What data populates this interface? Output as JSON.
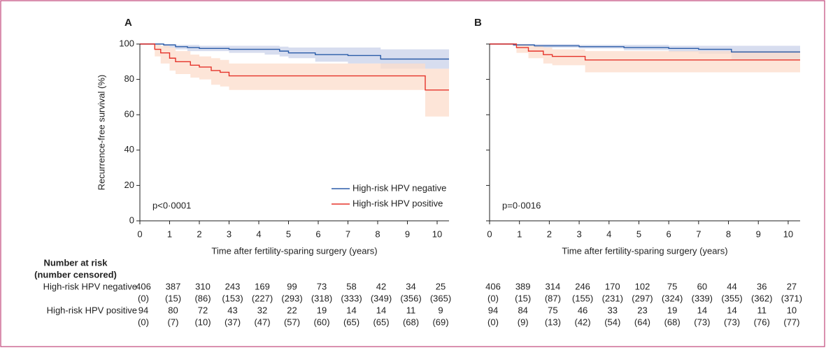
{
  "chart_data": [
    {
      "type": "line",
      "step": true,
      "panel_label": "A",
      "annotation": "p<0·0001",
      "ylabel": "Recurrence-free survival (%)",
      "xlabel": "Time after fertility-sparing surgery (years)",
      "xlim": [
        0,
        10.4
      ],
      "xticks": [
        0,
        1,
        2,
        3,
        4,
        5,
        6,
        7,
        8,
        9,
        10
      ],
      "ylim": [
        0,
        100
      ],
      "yticks": [
        0,
        20,
        40,
        60,
        80,
        100
      ],
      "show_ytick_labels": true,
      "legend": "lower right",
      "series": [
        {
          "name": "High-risk HPV negative",
          "color": "#2a5ca8",
          "band_color": "#c9d2ea",
          "x": [
            0,
            0.8,
            1.2,
            1.6,
            2,
            3,
            4.2,
            4.7,
            5,
            5.9,
            7,
            8.1,
            10.4
          ],
          "values": [
            100,
            99.5,
            98.5,
            98,
            97.5,
            97,
            97,
            96,
            95,
            94,
            93.5,
            91.5,
            91.5
          ],
          "lower": [
            100,
            98,
            97,
            96,
            96,
            95,
            94,
            93,
            92,
            90,
            89,
            86,
            86
          ],
          "upper": [
            100,
            100,
            99.5,
            99.5,
            99,
            99,
            99,
            98.5,
            98,
            98,
            98,
            97,
            97
          ]
        },
        {
          "name": "High-risk HPV positive",
          "color": "#e5332a",
          "band_color": "#fcdccb",
          "x": [
            0,
            0.5,
            0.7,
            1,
            1.2,
            1.7,
            2,
            2.4,
            2.7,
            3,
            9.6,
            10.4
          ],
          "values": [
            100,
            97,
            95,
            92,
            90,
            88,
            87,
            85,
            84,
            82,
            74,
            74
          ],
          "lower": [
            100,
            93,
            89,
            85,
            83,
            81,
            80,
            77,
            76,
            74,
            59,
            59
          ],
          "upper": [
            100,
            100,
            99,
            98,
            96,
            94,
            93,
            92,
            91,
            89,
            86,
            86
          ]
        }
      ]
    },
    {
      "type": "line",
      "step": true,
      "panel_label": "B",
      "annotation": "p=0·0016",
      "xlabel": "Time after fertility-sparing surgery (years)",
      "xlim": [
        0,
        10.4
      ],
      "xticks": [
        0,
        1,
        2,
        3,
        4,
        5,
        6,
        7,
        8,
        9,
        10
      ],
      "ylim": [
        0,
        100
      ],
      "yticks": [
        0,
        20,
        40,
        60,
        80,
        100
      ],
      "show_ytick_labels": false,
      "legend": "none",
      "series": [
        {
          "name": "High-risk HPV negative",
          "color": "#2a5ca8",
          "band_color": "#c9d2ea",
          "x": [
            0,
            0.8,
            1.5,
            3,
            4.5,
            6,
            7,
            8.1,
            10.4
          ],
          "values": [
            100,
            99.5,
            99,
            98.5,
            98,
            97.5,
            97,
            95.5,
            95.5
          ],
          "lower": [
            100,
            99,
            98,
            97.5,
            96.5,
            95.5,
            94.5,
            91,
            91
          ],
          "upper": [
            100,
            100,
            100,
            99.5,
            99.5,
            99,
            99,
            99,
            99
          ]
        },
        {
          "name": "High-risk HPV positive",
          "color": "#e5332a",
          "band_color": "#fcdccb",
          "x": [
            0,
            0.9,
            1.3,
            1.8,
            2.1,
            3.2,
            10.4
          ],
          "values": [
            100,
            98,
            96,
            94,
            93,
            91,
            91
          ],
          "lower": [
            100,
            95,
            92,
            89,
            88,
            84,
            84
          ],
          "upper": [
            100,
            100,
            99,
            98,
            97,
            96,
            96
          ]
        }
      ]
    }
  ],
  "risk_table": {
    "header": [
      "Number at risk",
      "(number censored)"
    ],
    "rows": [
      {
        "label": "High-risk HPV negative",
        "panels": [
          {
            "at_risk": [
              406,
              387,
              310,
              243,
              169,
              99,
              73,
              58,
              42,
              34,
              25
            ],
            "censored": [
              "(0)",
              "(15)",
              "(86)",
              "(153)",
              "(227)",
              "(293)",
              "(318)",
              "(333)",
              "(349)",
              "(356)",
              "(365)"
            ]
          },
          {
            "at_risk": [
              406,
              389,
              314,
              246,
              170,
              102,
              75,
              60,
              44,
              36,
              27
            ],
            "censored": [
              "(0)",
              "(15)",
              "(87)",
              "(155)",
              "(231)",
              "(297)",
              "(324)",
              "(339)",
              "(355)",
              "(362)",
              "(371)"
            ]
          }
        ]
      },
      {
        "label": "High-risk HPV positive",
        "panels": [
          {
            "at_risk": [
              94,
              80,
              72,
              43,
              32,
              22,
              19,
              14,
              14,
              11,
              9
            ],
            "censored": [
              "(0)",
              "(7)",
              "(10)",
              "(37)",
              "(47)",
              "(57)",
              "(60)",
              "(65)",
              "(65)",
              "(68)",
              "(69)"
            ]
          },
          {
            "at_risk": [
              94,
              84,
              75,
              46,
              33,
              23,
              19,
              14,
              14,
              11,
              10
            ],
            "censored": [
              "(0)",
              "(9)",
              "(13)",
              "(42)",
              "(54)",
              "(64)",
              "(68)",
              "(73)",
              "(73)",
              "(76)",
              "(77)"
            ]
          }
        ]
      }
    ]
  }
}
